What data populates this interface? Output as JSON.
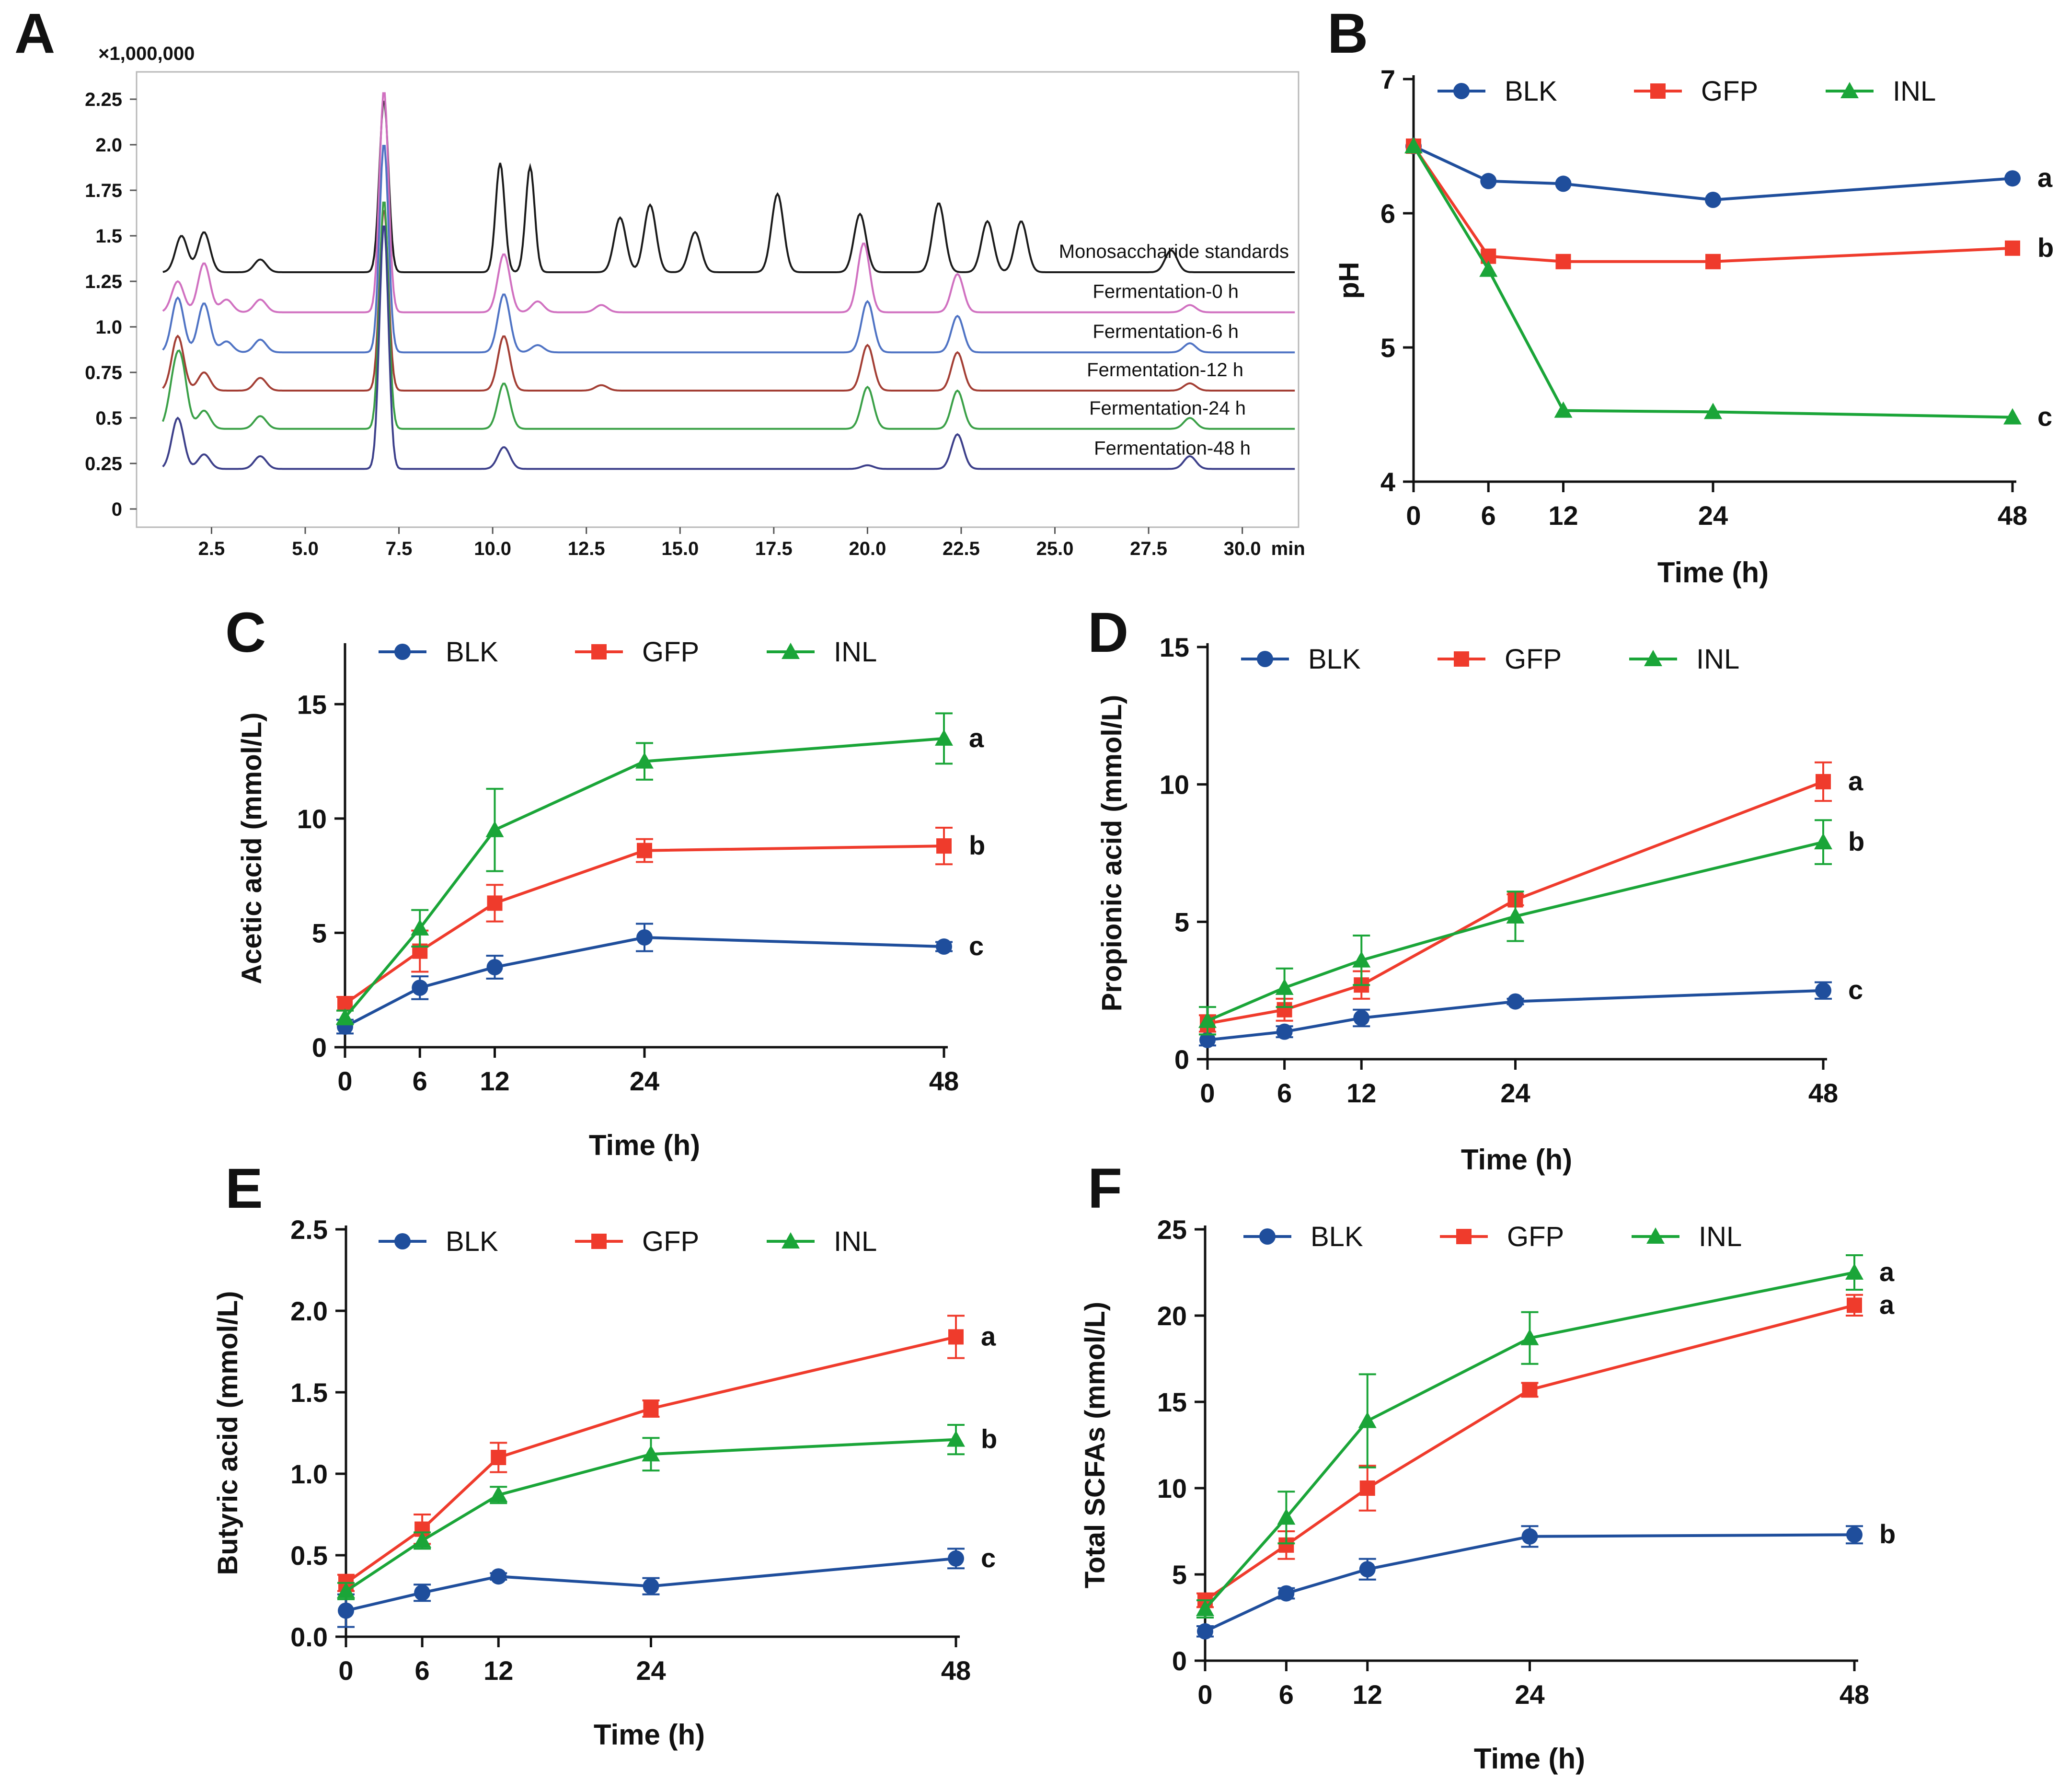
{
  "chart_data": [
    {
      "panel": "A",
      "type": "line",
      "title": "",
      "scale_note": "×1,000,000",
      "x_unit": "min",
      "xlim": [
        0.5,
        31.5
      ],
      "ylim": [
        -0.1,
        2.4
      ],
      "x_ticks": [
        "2.5",
        "5.0",
        "7.5",
        "10.0",
        "12.5",
        "15.0",
        "17.5",
        "20.0",
        "22.5",
        "25.0",
        "27.5",
        "30.0"
      ],
      "y_ticks": [
        "0",
        "0.25",
        "0.5",
        "0.75",
        "1.0",
        "1.25",
        "1.5",
        "1.75",
        "2.0",
        "2.25"
      ],
      "traces": [
        {
          "name": "Monosaccharide standards",
          "color": "#1a1a1a",
          "baseline": 1.3,
          "peaks": [
            [
              1.7,
              0.2
            ],
            [
              2.3,
              0.22
            ],
            [
              3.8,
              0.07
            ],
            [
              7.1,
              0.95
            ],
            [
              10.2,
              0.6
            ],
            [
              11.0,
              0.58
            ],
            [
              13.4,
              0.3
            ],
            [
              14.2,
              0.37
            ],
            [
              15.4,
              0.22
            ],
            [
              17.6,
              0.43
            ],
            [
              19.8,
              0.32
            ],
            [
              21.9,
              0.38
            ],
            [
              23.2,
              0.28
            ],
            [
              24.1,
              0.28
            ],
            [
              28.1,
              0.12
            ]
          ]
        },
        {
          "name": "Fermentation-0 h",
          "color": "#d070c0",
          "baseline": 1.08,
          "peaks": [
            [
              1.6,
              0.17
            ],
            [
              2.3,
              0.27
            ],
            [
              2.9,
              0.07
            ],
            [
              3.8,
              0.07
            ],
            [
              7.1,
              1.22
            ],
            [
              10.3,
              0.32
            ],
            [
              11.2,
              0.06
            ],
            [
              12.9,
              0.04
            ],
            [
              19.9,
              0.38
            ],
            [
              22.4,
              0.21
            ],
            [
              28.6,
              0.04
            ]
          ]
        },
        {
          "name": "Fermentation-6 h",
          "color": "#4f73c4",
          "baseline": 0.86,
          "peaks": [
            [
              1.6,
              0.3
            ],
            [
              2.3,
              0.27
            ],
            [
              2.9,
              0.06
            ],
            [
              3.8,
              0.07
            ],
            [
              7.1,
              1.15
            ],
            [
              10.3,
              0.32
            ],
            [
              11.2,
              0.04
            ],
            [
              20.0,
              0.28
            ],
            [
              22.4,
              0.2
            ],
            [
              28.6,
              0.05
            ]
          ]
        },
        {
          "name": "Fermentation-12 h",
          "color": "#a33e34",
          "baseline": 0.65,
          "peaks": [
            [
              1.6,
              0.3
            ],
            [
              2.3,
              0.1
            ],
            [
              3.8,
              0.07
            ],
            [
              7.1,
              1.0
            ],
            [
              10.3,
              0.3
            ],
            [
              12.9,
              0.03
            ],
            [
              20.0,
              0.25
            ],
            [
              22.4,
              0.21
            ],
            [
              28.6,
              0.04
            ]
          ]
        },
        {
          "name": "Fermentation-24 h",
          "color": "#3aa047",
          "baseline": 0.44,
          "peaks": [
            [
              1.5,
              0.22
            ],
            [
              1.7,
              0.3
            ],
            [
              2.3,
              0.1
            ],
            [
              3.8,
              0.07
            ],
            [
              7.1,
              1.26
            ],
            [
              10.3,
              0.25
            ],
            [
              20.0,
              0.23
            ],
            [
              22.4,
              0.21
            ],
            [
              28.6,
              0.06
            ]
          ]
        },
        {
          "name": "Fermentation-48 h",
          "color": "#3c3f8a",
          "baseline": 0.22,
          "peaks": [
            [
              1.6,
              0.28
            ],
            [
              2.3,
              0.08
            ],
            [
              3.8,
              0.07
            ],
            [
              7.1,
              1.35
            ],
            [
              10.3,
              0.12
            ],
            [
              20.0,
              0.02
            ],
            [
              22.4,
              0.19
            ],
            [
              28.6,
              0.07
            ]
          ]
        }
      ]
    },
    {
      "panel": "B",
      "type": "line",
      "xlabel": "Time (h)",
      "ylabel": "pH",
      "x": [
        0,
        6,
        12,
        24,
        48
      ],
      "x_ticks": [
        0,
        6,
        12,
        24,
        48
      ],
      "ylim": [
        4,
        7
      ],
      "y_ticks": [
        4,
        5,
        6,
        7
      ],
      "series": [
        {
          "name": "BLK",
          "values": [
            6.5,
            6.24,
            6.22,
            6.1,
            6.26
          ],
          "err": [
            0,
            0,
            0,
            0,
            0
          ],
          "letter": "a"
        },
        {
          "name": "GFP",
          "values": [
            6.5,
            5.68,
            5.64,
            5.64,
            5.74
          ],
          "err": [
            0,
            0,
            0,
            0,
            0
          ],
          "letter": "b"
        },
        {
          "name": "INL",
          "values": [
            6.5,
            5.58,
            4.53,
            4.52,
            4.48
          ],
          "err": [
            0,
            0,
            0,
            0,
            0
          ],
          "letter": "c"
        }
      ]
    },
    {
      "panel": "C",
      "type": "line",
      "xlabel": "Time (h)",
      "ylabel": "Acetic acid (mmol/L)",
      "x": [
        0,
        6,
        12,
        24,
        48
      ],
      "x_ticks": [
        0,
        6,
        12,
        24,
        48
      ],
      "ylim": [
        0,
        17.5
      ],
      "y_ticks": [
        0,
        5,
        10,
        15
      ],
      "series": [
        {
          "name": "BLK",
          "values": [
            0.9,
            2.6,
            3.5,
            4.8,
            4.4
          ],
          "err": [
            0.3,
            0.5,
            0.5,
            0.6,
            0.2
          ],
          "letter": "c"
        },
        {
          "name": "GFP",
          "values": [
            1.9,
            4.2,
            6.3,
            8.6,
            8.8
          ],
          "err": [
            0.3,
            0.9,
            0.8,
            0.5,
            0.8
          ],
          "letter": "b"
        },
        {
          "name": "INL",
          "values": [
            1.3,
            5.2,
            9.5,
            12.5,
            13.5
          ],
          "err": [
            0.3,
            0.8,
            1.8,
            0.8,
            1.1
          ],
          "letter": "a"
        }
      ]
    },
    {
      "panel": "D",
      "type": "line",
      "xlabel": "Time (h)",
      "ylabel": "Propionic acid (mmol/L)",
      "x": [
        0,
        6,
        12,
        24,
        48
      ],
      "x_ticks": [
        0,
        6,
        12,
        24,
        48
      ],
      "ylim": [
        0,
        15
      ],
      "y_ticks": [
        0,
        5,
        10,
        15
      ],
      "series": [
        {
          "name": "BLK",
          "values": [
            0.7,
            1.0,
            1.5,
            2.1,
            2.5
          ],
          "err": [
            0.2,
            0.2,
            0.3,
            0.1,
            0.3
          ],
          "letter": "c"
        },
        {
          "name": "GFP",
          "values": [
            1.3,
            1.8,
            2.7,
            5.8,
            10.1
          ],
          "err": [
            0.3,
            0.4,
            0.5,
            0.2,
            0.7
          ],
          "letter": "a"
        },
        {
          "name": "INL",
          "values": [
            1.4,
            2.6,
            3.6,
            5.2,
            7.9
          ],
          "err": [
            0.5,
            0.7,
            0.9,
            0.9,
            0.8
          ],
          "letter": "b"
        }
      ]
    },
    {
      "panel": "E",
      "type": "line",
      "xlabel": "Time (h)",
      "ylabel": "Butyric acid (mmol/L)",
      "x": [
        0,
        6,
        12,
        24,
        48
      ],
      "x_ticks": [
        0,
        6,
        12,
        24,
        48
      ],
      "ylim": [
        0,
        2.5
      ],
      "y_ticks": [
        "0.0",
        "0.5",
        "1.0",
        "1.5",
        "2.0",
        "2.5"
      ],
      "series": [
        {
          "name": "BLK",
          "values": [
            0.16,
            0.27,
            0.37,
            0.31,
            0.48
          ],
          "err": [
            0.1,
            0.05,
            0.02,
            0.05,
            0.06
          ],
          "letter": "c"
        },
        {
          "name": "GFP",
          "values": [
            0.33,
            0.66,
            1.1,
            1.4,
            1.84
          ],
          "err": [
            0.05,
            0.09,
            0.09,
            0.05,
            0.13
          ],
          "letter": "a"
        },
        {
          "name": "INL",
          "values": [
            0.28,
            0.59,
            0.87,
            1.12,
            1.21
          ],
          "err": [
            0.05,
            0.05,
            0.05,
            0.1,
            0.09
          ],
          "letter": "b"
        }
      ]
    },
    {
      "panel": "F",
      "type": "line",
      "xlabel": "Time (h)",
      "ylabel": "Total SCFAs (mmol/L)",
      "x": [
        0,
        6,
        12,
        24,
        48
      ],
      "x_ticks": [
        0,
        6,
        12,
        24,
        48
      ],
      "ylim": [
        0,
        25
      ],
      "y_ticks": [
        0,
        5,
        10,
        15,
        20,
        25
      ],
      "series": [
        {
          "name": "BLK",
          "values": [
            1.7,
            3.9,
            5.3,
            7.2,
            7.3
          ],
          "err": [
            0.3,
            0.3,
            0.6,
            0.6,
            0.5
          ],
          "letter": "b"
        },
        {
          "name": "GFP",
          "values": [
            3.5,
            6.7,
            10.0,
            15.7,
            20.6
          ],
          "err": [
            0.4,
            0.8,
            1.3,
            0.4,
            0.6
          ],
          "letter": "a"
        },
        {
          "name": "INL",
          "values": [
            3.0,
            8.3,
            13.9,
            18.7,
            22.5
          ],
          "err": [
            0.5,
            1.5,
            2.7,
            1.5,
            1.0
          ],
          "letter": "a"
        }
      ]
    }
  ],
  "colors": {
    "BLK": "#1f4e9c",
    "GFP": "#ef3b2c",
    "INL": "#1aa538"
  },
  "panel_labels": [
    "A",
    "B",
    "C",
    "D",
    "E",
    "F"
  ]
}
